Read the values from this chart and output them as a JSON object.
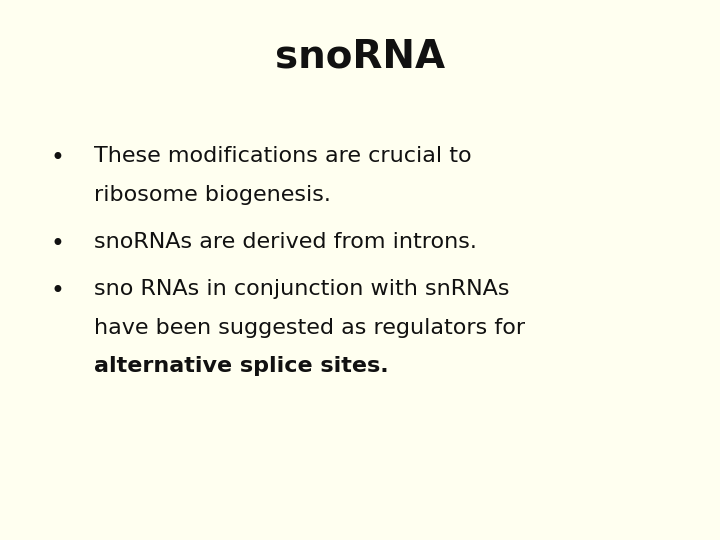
{
  "title": "snoRNA",
  "background_color": "#FFFFF0",
  "title_fontsize": 28,
  "title_fontweight": "bold",
  "title_color": "#111111",
  "bullet_fontsize": 16,
  "bullet_color": "#111111",
  "bullet_points": [
    [
      "These modifications are crucial to",
      "ribosome biogenesis."
    ],
    [
      "snoRNAs are derived from introns."
    ],
    [
      "sno RNAs in conjunction with snRNAs",
      "have been suggested as regulators for",
      "alternative splice sites."
    ]
  ],
  "bullet_bold_line_index": [
    null,
    null,
    2
  ],
  "figsize": [
    7.2,
    5.4
  ],
  "dpi": 100
}
